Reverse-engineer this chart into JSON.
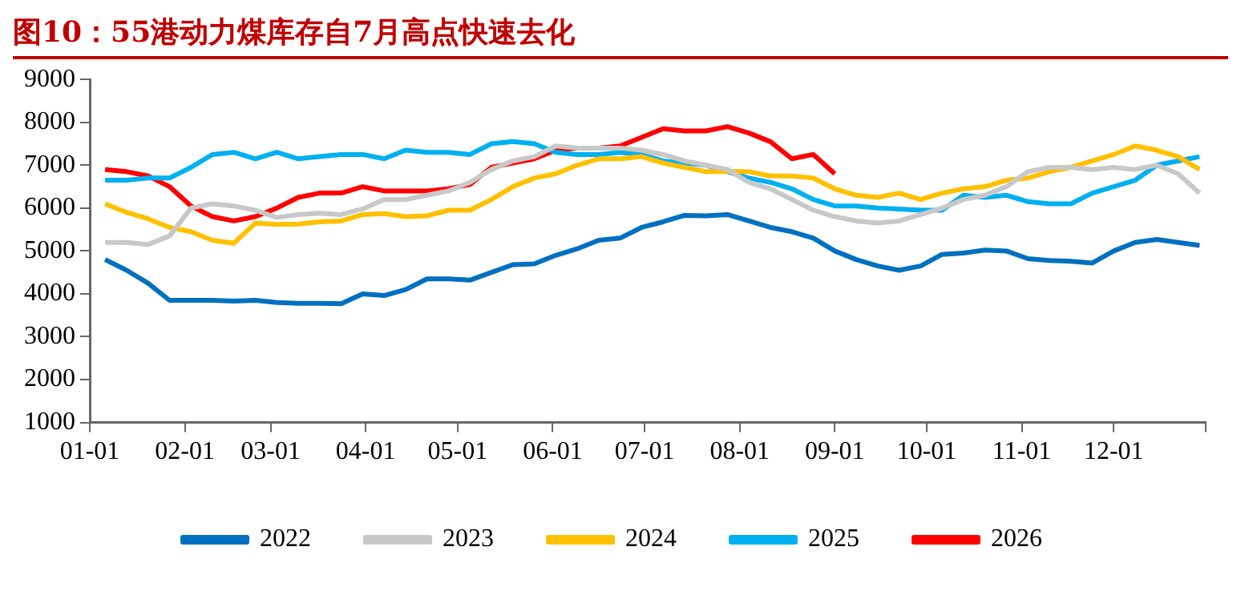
{
  "chart_data": {
    "type": "line",
    "title": "图10：55港动力煤库存自7月高点快速去化",
    "x": [
      "--01-06",
      "--01-13",
      "--01-20",
      "--01-27",
      "--02-03",
      "--02-10",
      "--02-17",
      "--02-24",
      "--03-03",
      "--03-10",
      "--03-17",
      "--03-24",
      "--03-31",
      "--04-07",
      "--04-14",
      "--04-21",
      "--04-28",
      "--05-05",
      "--05-12",
      "--05-19",
      "--05-26",
      "--06-02",
      "--06-09",
      "--06-16",
      "--06-23",
      "--06-30",
      "--07-07",
      "--07-14",
      "--07-21",
      "--07-28",
      "--08-04",
      "--08-11",
      "--08-18",
      "--08-25",
      "--09-01",
      "--09-08",
      "--09-15",
      "--09-22",
      "--09-29",
      "--10-06",
      "--10-13",
      "--10-20",
      "--10-27",
      "--11-03",
      "--11-10",
      "--11-17",
      "--11-24",
      "--12-01",
      "--12-08",
      "--12-15",
      "--12-22",
      "--12-29"
    ],
    "series": [
      {
        "name": "2022",
        "color": "#0070c0",
        "values": [
          4800,
          4550,
          4250,
          3850,
          3850,
          3850,
          3830,
          3850,
          3800,
          3780,
          3780,
          3770,
          4000,
          3960,
          4100,
          4350,
          4350,
          4320,
          4500,
          4680,
          4700,
          4900,
          5050,
          5250,
          5300,
          5550,
          5680,
          5830,
          5820,
          5850,
          5700,
          5550,
          5450,
          5300,
          5000,
          4800,
          4650,
          4550,
          4650,
          4920,
          4950,
          5020,
          5000,
          4820,
          4780,
          4760,
          4720,
          5000,
          5200,
          5270,
          5200,
          5130
        ]
      },
      {
        "name": "2023",
        "color": "#c8c8c8",
        "values": [
          5200,
          5200,
          5150,
          5350,
          6000,
          6100,
          6050,
          5950,
          5780,
          5850,
          5880,
          5850,
          5980,
          6200,
          6200,
          6300,
          6400,
          6600,
          6900,
          7100,
          7200,
          7450,
          7400,
          7400,
          7400,
          7350,
          7250,
          7100,
          7000,
          6900,
          6600,
          6450,
          6200,
          5950,
          5800,
          5700,
          5650,
          5700,
          5850,
          6000,
          6200,
          6300,
          6500,
          6850,
          6950,
          6950,
          6900,
          6950,
          6900,
          7000,
          6800,
          6350
        ]
      },
      {
        "name": "2024",
        "color": "#ffc000",
        "values": [
          6100,
          5900,
          5750,
          5550,
          5450,
          5250,
          5180,
          5650,
          5620,
          5630,
          5680,
          5700,
          5850,
          5870,
          5800,
          5820,
          5950,
          5950,
          6200,
          6500,
          6700,
          6800,
          7000,
          7150,
          7150,
          7200,
          7050,
          6950,
          6850,
          6850,
          6850,
          6750,
          6750,
          6700,
          6450,
          6300,
          6250,
          6350,
          6200,
          6350,
          6450,
          6500,
          6650,
          6700,
          6850,
          6950,
          7100,
          7250,
          7450,
          7350,
          7200,
          6900
        ]
      },
      {
        "name": "2025",
        "color": "#00b0f0",
        "values": [
          6650,
          6650,
          6700,
          6700,
          6950,
          7250,
          7300,
          7150,
          7300,
          7150,
          7200,
          7250,
          7250,
          7150,
          7350,
          7300,
          7300,
          7250,
          7500,
          7550,
          7500,
          7300,
          7250,
          7250,
          7300,
          7250,
          7100,
          7050,
          7000,
          6850,
          6700,
          6600,
          6450,
          6200,
          6050,
          6050,
          6000,
          5980,
          5950,
          5950,
          6300,
          6250,
          6300,
          6150,
          6100,
          6100,
          6350,
          6500,
          6650,
          7000,
          7100,
          7200
        ]
      },
      {
        "name": "2026",
        "color": "#ff0000",
        "values": [
          6900,
          6850,
          6750,
          6500,
          6050,
          5800,
          5700,
          5800,
          6000,
          6250,
          6350,
          6350,
          6500,
          6400,
          6400,
          6400,
          6450,
          6550,
          6950,
          7050,
          7150,
          7350,
          7400,
          7400,
          7450,
          7650,
          7850,
          7800,
          7800,
          7900,
          7750,
          7550,
          7150,
          7250,
          6800,
          null,
          null,
          null,
          null,
          null,
          null,
          null,
          null,
          null,
          null,
          null,
          null,
          null,
          null,
          null,
          null,
          null
        ]
      }
    ],
    "xlim": [
      "--01-01",
      "--12-31"
    ],
    "xticks": [
      {
        "value": "--01-01",
        "label": "01-01"
      },
      {
        "value": "--02-01",
        "label": "02-01"
      },
      {
        "value": "--03-01",
        "label": "03-01"
      },
      {
        "value": "--04-01",
        "label": "04-01"
      },
      {
        "value": "--05-01",
        "label": "05-01"
      },
      {
        "value": "--06-01",
        "label": "06-01"
      },
      {
        "value": "--07-01",
        "label": "07-01"
      },
      {
        "value": "--08-01",
        "label": "08-01"
      },
      {
        "value": "--09-01",
        "label": "09-01"
      },
      {
        "value": "--10-01",
        "label": "10-01"
      },
      {
        "value": "--11-01",
        "label": "11-01"
      },
      {
        "value": "--12-01",
        "label": "12-01"
      },
      {
        "value": "--12-31",
        "label": null
      }
    ],
    "ylim": [
      1000,
      9000
    ],
    "yticks": [
      1000,
      2000,
      3000,
      4000,
      5000,
      6000,
      7000,
      8000,
      9000
    ],
    "grid": false,
    "legend": "bottom",
    "marker": "none",
    "line_style": "solid"
  }
}
